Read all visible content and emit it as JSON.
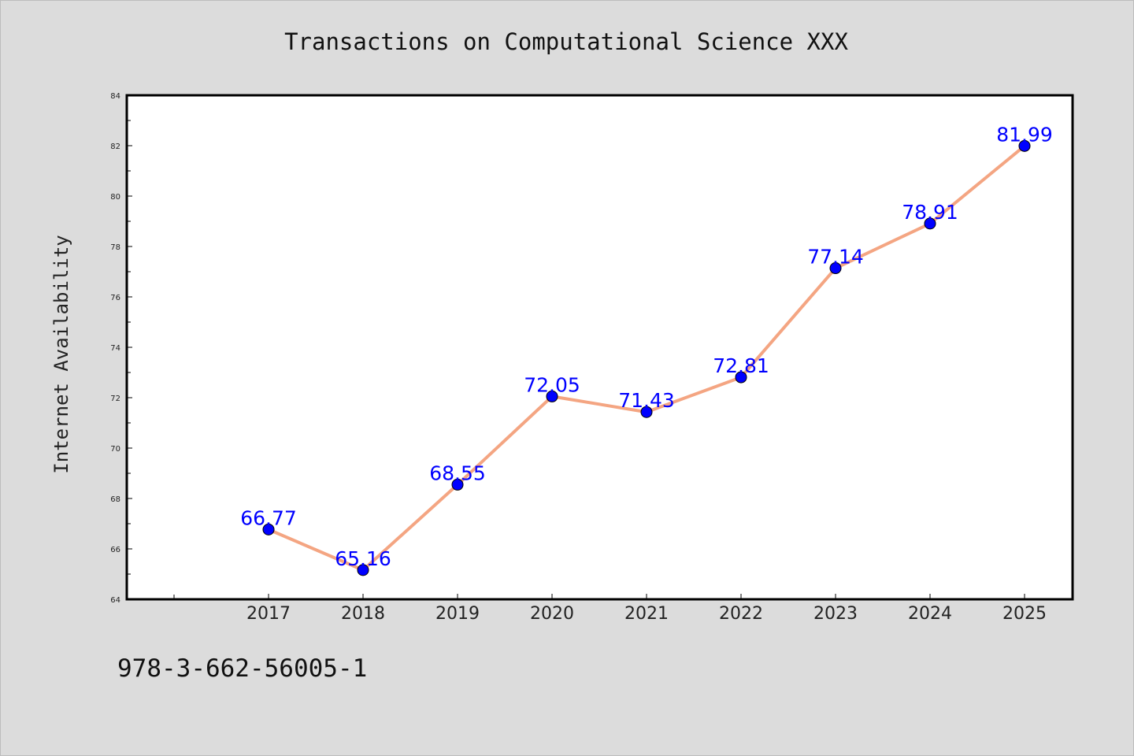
{
  "figure": {
    "isbn": "978-3-662-56005-1"
  },
  "colors": {
    "background": "#dcdcdc",
    "plot_background": "#ffffff",
    "line": "#f4a582",
    "marker": "#0000ff",
    "data_label": "#0000ff"
  },
  "chart_data": {
    "type": "line",
    "title": "Transactions on Computational Science XXX",
    "xlabel": "",
    "ylabel": "Internet Availability",
    "categories": [
      "2017",
      "2018",
      "2019",
      "2020",
      "2021",
      "2022",
      "2023",
      "2024",
      "2025"
    ],
    "series": [
      {
        "values": [
          66.77,
          65.16,
          68.55,
          72.05,
          71.43,
          72.81,
          77.14,
          78.91,
          81.99
        ],
        "data_labels": [
          "66.77",
          "65.16",
          "68.55",
          "72.05",
          "71.43",
          "72.81",
          "77.14",
          "78.91",
          "81.99"
        ]
      }
    ],
    "yticks": [
      "64",
      "66",
      "68",
      "70",
      "72",
      "74",
      "76",
      "78",
      "80",
      "82",
      "84"
    ],
    "ylim": [
      64,
      84
    ],
    "grid": false,
    "legend": "none"
  }
}
